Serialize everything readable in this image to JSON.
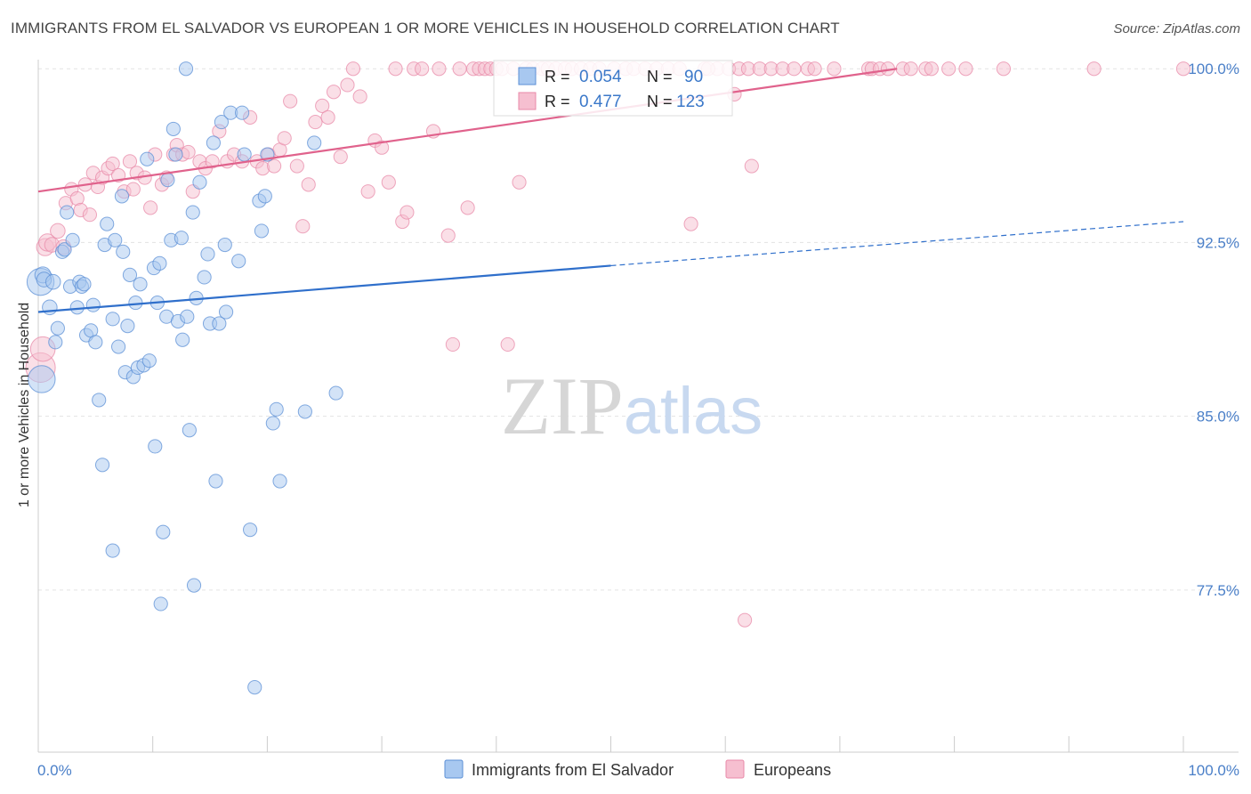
{
  "header": {
    "title": "IMMIGRANTS FROM EL SALVADOR VS EUROPEAN 1 OR MORE VEHICLES IN HOUSEHOLD CORRELATION CHART",
    "source": "Source: ZipAtlas.com"
  },
  "watermark": "ZIPatlas",
  "colors": {
    "blue_fill": "#a8c8f0",
    "blue_stroke": "#5b8fd6",
    "blue_line": "#2f6fcb",
    "pink_fill": "#f6bfd0",
    "pink_stroke": "#e88aa8",
    "pink_line": "#e0628c",
    "axis_label": "#4a7fc8"
  },
  "chart_data": {
    "type": "scatter",
    "title": "IMMIGRANTS FROM EL SALVADOR VS EUROPEAN 1 OR MORE VEHICLES IN HOUSEHOLD CORRELATION CHART",
    "xlabel": "",
    "ylabel": "1 or more Vehicles in Household",
    "xlim": [
      0,
      100
    ],
    "ylim": [
      70.5,
      101.2
    ],
    "y_ticks": [
      77.5,
      85.0,
      92.5,
      100.0
    ],
    "y_tick_labels": [
      "77.5%",
      "85.0%",
      "92.5%",
      "100.0%"
    ],
    "x_tick_labels": [
      "0.0%",
      "100.0%"
    ],
    "grid": true,
    "legend_position": "top-center",
    "stats": [
      {
        "r_label": "R =",
        "r_value": "0.054",
        "n_label": "N =",
        "n_value": "90"
      },
      {
        "r_label": "R =",
        "r_value": "0.477",
        "n_label": "N =",
        "n_value": "123"
      }
    ],
    "series": [
      {
        "name": "Immigrants from El Salvador",
        "trend": {
          "x_start": 0,
          "y_start": 89.5,
          "x_end": 50,
          "y_end": 91.5,
          "x_dash_end": 100,
          "y_dash_end": 93.4
        },
        "points": [
          [
            0.2,
            90.8
          ],
          [
            0.3,
            86.6
          ],
          [
            0.4,
            91.1
          ],
          [
            0.5,
            90.9
          ],
          [
            1.0,
            89.7
          ],
          [
            1.3,
            90.8
          ],
          [
            1.5,
            88.2
          ],
          [
            1.7,
            88.8
          ],
          [
            2.1,
            92.1
          ],
          [
            2.3,
            92.2
          ],
          [
            2.5,
            93.8
          ],
          [
            2.8,
            90.6
          ],
          [
            3.0,
            92.6
          ],
          [
            3.4,
            89.7
          ],
          [
            3.6,
            90.8
          ],
          [
            3.8,
            90.6
          ],
          [
            4.0,
            90.7
          ],
          [
            4.2,
            88.5
          ],
          [
            4.6,
            88.7
          ],
          [
            4.8,
            89.8
          ],
          [
            5.0,
            88.2
          ],
          [
            5.3,
            85.7
          ],
          [
            5.6,
            82.9
          ],
          [
            5.8,
            92.4
          ],
          [
            6.0,
            93.3
          ],
          [
            6.5,
            89.2
          ],
          [
            6.5,
            79.2
          ],
          [
            6.7,
            92.6
          ],
          [
            7.0,
            88.0
          ],
          [
            7.3,
            94.5
          ],
          [
            7.4,
            92.1
          ],
          [
            7.6,
            86.9
          ],
          [
            7.8,
            88.9
          ],
          [
            8.0,
            91.1
          ],
          [
            8.3,
            86.7
          ],
          [
            8.5,
            89.9
          ],
          [
            8.7,
            87.1
          ],
          [
            8.9,
            90.7
          ],
          [
            9.2,
            87.2
          ],
          [
            9.5,
            96.1
          ],
          [
            9.7,
            87.4
          ],
          [
            10.1,
            91.4
          ],
          [
            10.2,
            83.7
          ],
          [
            10.4,
            89.9
          ],
          [
            10.6,
            91.6
          ],
          [
            10.7,
            76.9
          ],
          [
            10.9,
            80.0
          ],
          [
            11.2,
            89.3
          ],
          [
            11.3,
            95.2
          ],
          [
            11.6,
            92.6
          ],
          [
            11.8,
            97.4
          ],
          [
            12.0,
            96.3
          ],
          [
            12.2,
            89.1
          ],
          [
            12.5,
            92.7
          ],
          [
            12.6,
            88.3
          ],
          [
            12.9,
            100.0
          ],
          [
            13.0,
            89.3
          ],
          [
            13.2,
            84.4
          ],
          [
            13.5,
            93.8
          ],
          [
            13.6,
            77.7
          ],
          [
            13.8,
            90.1
          ],
          [
            14.1,
            95.1
          ],
          [
            14.5,
            91.0
          ],
          [
            14.8,
            92.0
          ],
          [
            15.0,
            89.0
          ],
          [
            15.3,
            96.8
          ],
          [
            15.5,
            82.2
          ],
          [
            15.8,
            89.0
          ],
          [
            16.0,
            97.7
          ],
          [
            16.4,
            89.5
          ],
          [
            16.3,
            92.4
          ],
          [
            16.8,
            98.1
          ],
          [
            17.5,
            91.7
          ],
          [
            17.8,
            98.1
          ],
          [
            18.0,
            96.3
          ],
          [
            18.5,
            80.1
          ],
          [
            18.9,
            73.3
          ],
          [
            19.3,
            94.3
          ],
          [
            19.5,
            93.0
          ],
          [
            19.8,
            94.5
          ],
          [
            20.0,
            96.3
          ],
          [
            20.5,
            84.7
          ],
          [
            20.8,
            85.3
          ],
          [
            21.1,
            82.2
          ],
          [
            23.3,
            85.2
          ],
          [
            24.1,
            96.8
          ],
          [
            26.0,
            86.0
          ]
        ],
        "sizes": [
          22,
          22,
          13,
          12,
          12,
          12,
          11,
          11,
          11,
          11,
          11,
          11,
          11,
          11,
          11,
          11,
          11,
          11,
          11,
          11,
          11,
          11,
          11,
          11,
          11,
          11,
          11,
          11,
          11,
          11,
          11,
          11,
          11,
          11,
          11,
          11,
          11,
          11,
          11,
          11,
          11,
          11,
          11,
          11,
          11,
          11,
          11,
          11,
          11,
          11,
          11,
          11,
          11,
          11,
          11,
          11,
          11,
          11,
          11,
          11,
          11,
          11,
          11,
          11,
          11,
          11,
          11,
          11,
          11,
          11,
          11,
          11,
          11,
          11,
          11,
          11,
          11,
          11,
          11,
          11,
          11,
          11,
          11,
          11,
          11,
          11
        ]
      },
      {
        "name": "Europeans",
        "trend": {
          "x_start": 0,
          "y_start": 94.7,
          "x_end": 75,
          "y_end": 100.0
        },
        "points": [
          [
            0.2,
            87.1
          ],
          [
            0.4,
            87.9
          ],
          [
            0.6,
            92.3
          ],
          [
            0.8,
            92.5
          ],
          [
            1.2,
            92.4
          ],
          [
            1.7,
            93.0
          ],
          [
            2.2,
            92.3
          ],
          [
            2.4,
            94.2
          ],
          [
            2.9,
            94.8
          ],
          [
            3.4,
            94.4
          ],
          [
            3.7,
            93.9
          ],
          [
            4.1,
            95.0
          ],
          [
            4.5,
            93.7
          ],
          [
            4.8,
            95.5
          ],
          [
            5.2,
            94.9
          ],
          [
            5.6,
            95.3
          ],
          [
            6.1,
            95.7
          ],
          [
            6.5,
            95.9
          ],
          [
            7.0,
            95.4
          ],
          [
            7.5,
            94.7
          ],
          [
            8.0,
            96.0
          ],
          [
            8.3,
            94.8
          ],
          [
            8.6,
            95.5
          ],
          [
            9.3,
            95.3
          ],
          [
            9.8,
            94.0
          ],
          [
            10.2,
            96.3
          ],
          [
            10.8,
            95.0
          ],
          [
            11.2,
            95.3
          ],
          [
            11.8,
            96.3
          ],
          [
            12.1,
            96.7
          ],
          [
            12.6,
            96.3
          ],
          [
            13.1,
            96.4
          ],
          [
            13.5,
            94.7
          ],
          [
            14.1,
            96.0
          ],
          [
            14.6,
            95.7
          ],
          [
            15.2,
            96.0
          ],
          [
            15.8,
            97.3
          ],
          [
            16.5,
            96.0
          ],
          [
            17.1,
            96.3
          ],
          [
            17.8,
            96.0
          ],
          [
            18.5,
            97.9
          ],
          [
            19.1,
            96.0
          ],
          [
            19.6,
            95.7
          ],
          [
            20.1,
            96.3
          ],
          [
            20.6,
            95.8
          ],
          [
            21.1,
            96.5
          ],
          [
            21.5,
            97.0
          ],
          [
            22.0,
            98.6
          ],
          [
            22.6,
            95.8
          ],
          [
            23.1,
            93.2
          ],
          [
            23.6,
            95.0
          ],
          [
            24.2,
            97.7
          ],
          [
            24.8,
            98.4
          ],
          [
            25.3,
            97.9
          ],
          [
            25.8,
            99.0
          ],
          [
            26.4,
            96.2
          ],
          [
            27.0,
            99.3
          ],
          [
            27.5,
            100.0
          ],
          [
            28.1,
            98.8
          ],
          [
            28.8,
            94.7
          ],
          [
            29.4,
            96.9
          ],
          [
            30.0,
            96.6
          ],
          [
            30.6,
            95.1
          ],
          [
            31.2,
            100.0
          ],
          [
            31.8,
            93.4
          ],
          [
            32.2,
            93.8
          ],
          [
            32.8,
            100.0
          ],
          [
            33.5,
            100.0
          ],
          [
            34.5,
            97.3
          ],
          [
            35.0,
            100.0
          ],
          [
            35.8,
            92.8
          ],
          [
            36.2,
            88.1
          ],
          [
            36.8,
            100.0
          ],
          [
            37.5,
            94.0
          ],
          [
            38.0,
            100.0
          ],
          [
            38.5,
            100.0
          ],
          [
            39.0,
            100.0
          ],
          [
            39.5,
            100.0
          ],
          [
            40.0,
            100.0
          ],
          [
            40.5,
            100.0
          ],
          [
            41.0,
            88.1
          ],
          [
            41.5,
            100.0
          ],
          [
            42.0,
            95.1
          ],
          [
            42.6,
            100.0
          ],
          [
            43.2,
            100.0
          ],
          [
            44.0,
            100.0
          ],
          [
            44.5,
            100.0
          ],
          [
            45.2,
            100.0
          ],
          [
            46.0,
            100.0
          ],
          [
            46.6,
            100.0
          ],
          [
            47.4,
            100.0
          ],
          [
            48.2,
            100.0
          ],
          [
            49.0,
            100.0
          ],
          [
            50.3,
            100.0
          ],
          [
            51.3,
            100.0
          ],
          [
            52.0,
            100.0
          ],
          [
            53.0,
            100.0
          ],
          [
            54.0,
            100.0
          ],
          [
            55.0,
            100.0
          ],
          [
            56.0,
            100.0
          ],
          [
            57.0,
            93.3
          ],
          [
            58.2,
            100.0
          ],
          [
            59.3,
            100.0
          ],
          [
            60.3,
            100.0
          ],
          [
            61.2,
            100.0
          ],
          [
            62.0,
            100.0
          ],
          [
            63.0,
            100.0
          ],
          [
            64.0,
            100.0
          ],
          [
            65.0,
            100.0
          ],
          [
            66.0,
            100.0
          ],
          [
            67.2,
            100.0
          ],
          [
            67.8,
            100.0
          ],
          [
            69.5,
            100.0
          ],
          [
            75.5,
            100.0
          ],
          [
            76.2,
            100.0
          ],
          [
            77.5,
            100.0
          ],
          [
            78.0,
            100.0
          ],
          [
            79.5,
            100.0
          ],
          [
            81.0,
            100.0
          ],
          [
            72.5,
            100.0
          ],
          [
            72.8,
            100.0
          ],
          [
            73.5,
            100.0
          ],
          [
            74.2,
            100.0
          ],
          [
            58.5,
            100.0
          ],
          [
            60.8,
            98.9
          ],
          [
            62.3,
            95.8
          ],
          [
            61.7,
            76.2
          ],
          [
            84.3,
            100.0
          ],
          [
            92.2,
            100.0
          ],
          [
            100.0,
            100.0
          ]
        ],
        "sizes": [
          24,
          20,
          14,
          14,
          12,
          12,
          12,
          11,
          11,
          11,
          11,
          11,
          11,
          11,
          11,
          11,
          11,
          11,
          11,
          11,
          11,
          11,
          11,
          11,
          11,
          11,
          11,
          11,
          11,
          11,
          11,
          11,
          11,
          11,
          11,
          11,
          11,
          11,
          11,
          11,
          11,
          11,
          11,
          11,
          11,
          11,
          11,
          11,
          11,
          11,
          11,
          11,
          11,
          11,
          11,
          11,
          11,
          11,
          11,
          11,
          11,
          11,
          11,
          11,
          11,
          11,
          11,
          11,
          11,
          11,
          11,
          11,
          11,
          11,
          11,
          11,
          11,
          11,
          11,
          11,
          11,
          11,
          11,
          11,
          11,
          11,
          11,
          11,
          11,
          11,
          11,
          11,
          11,
          11,
          11,
          11,
          11,
          11,
          11,
          11,
          11,
          11,
          11,
          11,
          11,
          11,
          11,
          11,
          11,
          11,
          11,
          11,
          11,
          11,
          11,
          11,
          11,
          11,
          11,
          11,
          11,
          11,
          11
        ]
      }
    ]
  }
}
